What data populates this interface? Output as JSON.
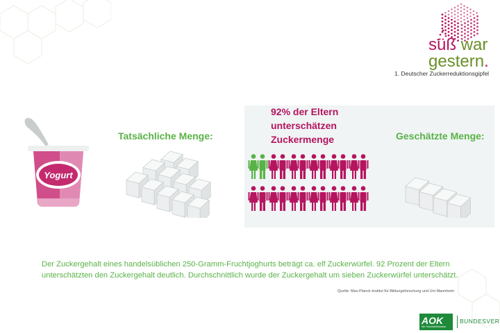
{
  "header": {
    "brand_line1_a": "süß",
    "brand_line1_b": "war",
    "brand_line2": "gestern",
    "brand_dot": ".",
    "subtitle": "1. Deutscher Zuckerreduktionsgipfel"
  },
  "yogurt": {
    "label": "Yogurt"
  },
  "actual": {
    "label": "Tatsächliche Menge:",
    "cubes": 11
  },
  "estimate": {
    "label": "Geschätzte Menge:",
    "cubes": 4
  },
  "survey": {
    "line1": "92% der Eltern",
    "line2": "unterschätzen",
    "line3": "Zuckermenge",
    "total_pairs": 16,
    "highlighted_pairs": 1
  },
  "description": {
    "line1": "Der Zuckergehalt eines handelsüblichen 250-Gramm-Fruchtjoghurts beträgt ca. elf Zuckerwürfel. 92 Prozent der Eltern",
    "line2": "unterschätzten den Zuckergehalt deutlich. Durchschnittlich wurde der Zuckergehalt um sieben Zuckerwürfel unterschätzt.",
    "source": "Quelle: Max-Planck-Institut für Bildungsforschung und Uni Mannheim"
  },
  "footer": {
    "aok": "AOK",
    "aok_sub": "Die Gesundheitskasse.",
    "bundesverband": "BUNDESVERBAND"
  },
  "colors": {
    "magenta": "#b5145f",
    "green": "#59b247",
    "aok_green": "#1e8a3a",
    "panel_bg": "#f0f4f4"
  }
}
